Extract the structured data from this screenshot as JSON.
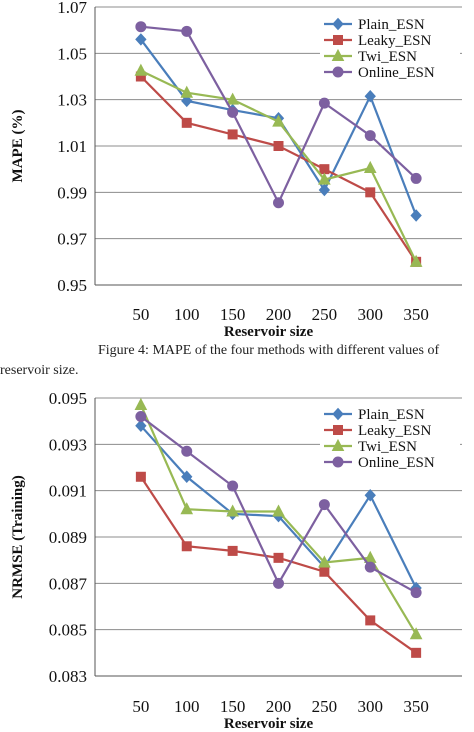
{
  "caption": {
    "line1": "Figure 4: MAPE of the four methods with different values of",
    "line2": "reservoir size."
  },
  "chart_data": [
    {
      "type": "line",
      "title": "",
      "xlabel": "Reservoir size",
      "ylabel": "MAPE (%)",
      "categories": [
        "50",
        "100",
        "150",
        "200",
        "250",
        "300",
        "350"
      ],
      "yticks": [
        "0.95",
        "0.97",
        "0.99",
        "1.01",
        "1.03",
        "1.05",
        "1.07"
      ],
      "ylim": [
        0.95,
        1.07
      ],
      "grid": true,
      "legend_position": "top-right",
      "series": [
        {
          "name": "Plain_ESN",
          "color": "#4a7ebb",
          "marker": "diamond",
          "values": [
            1.056,
            1.0295,
            1.0255,
            1.022,
            0.991,
            1.0315,
            0.98
          ]
        },
        {
          "name": "Leaky_ESN",
          "color": "#be4b48",
          "marker": "square",
          "values": [
            1.04,
            1.02,
            1.015,
            1.01,
            1.0,
            0.99,
            0.96
          ]
        },
        {
          "name": "Twi_ESN",
          "color": "#98b954",
          "marker": "triangle",
          "values": [
            1.0425,
            1.033,
            1.03,
            1.0205,
            0.9955,
            1.0005,
            0.96
          ]
        },
        {
          "name": "Online_ESN",
          "color": "#7d60a0",
          "marker": "circle",
          "values": [
            1.0615,
            1.0595,
            1.0245,
            0.9855,
            1.0285,
            1.0145,
            0.996
          ]
        }
      ]
    },
    {
      "type": "line",
      "title": "",
      "xlabel": "Reservoir size",
      "ylabel": "NRMSE (Training)",
      "categories": [
        "50",
        "100",
        "150",
        "200",
        "250",
        "300",
        "350"
      ],
      "yticks": [
        "0.083",
        "0.085",
        "0.087",
        "0.089",
        "0.091",
        "0.093",
        "0.095"
      ],
      "ylim": [
        0.083,
        0.095
      ],
      "grid": true,
      "legend_position": "top-right",
      "series": [
        {
          "name": "Plain_ESN",
          "color": "#4a7ebb",
          "marker": "diamond",
          "values": [
            0.0938,
            0.0916,
            0.09,
            0.0899,
            0.0877,
            0.0908,
            0.0868
          ]
        },
        {
          "name": "Leaky_ESN",
          "color": "#be4b48",
          "marker": "square",
          "values": [
            0.0916,
            0.0886,
            0.0884,
            0.0881,
            0.0875,
            0.0854,
            0.084
          ]
        },
        {
          "name": "Twi_ESN",
          "color": "#98b954",
          "marker": "triangle",
          "values": [
            0.0947,
            0.0902,
            0.0901,
            0.0901,
            0.0879,
            0.0881,
            0.0848
          ]
        },
        {
          "name": "Online_ESN",
          "color": "#7d60a0",
          "marker": "circle",
          "values": [
            0.0942,
            0.0927,
            0.0912,
            0.087,
            0.0904,
            0.0877,
            0.0866
          ]
        }
      ]
    }
  ]
}
